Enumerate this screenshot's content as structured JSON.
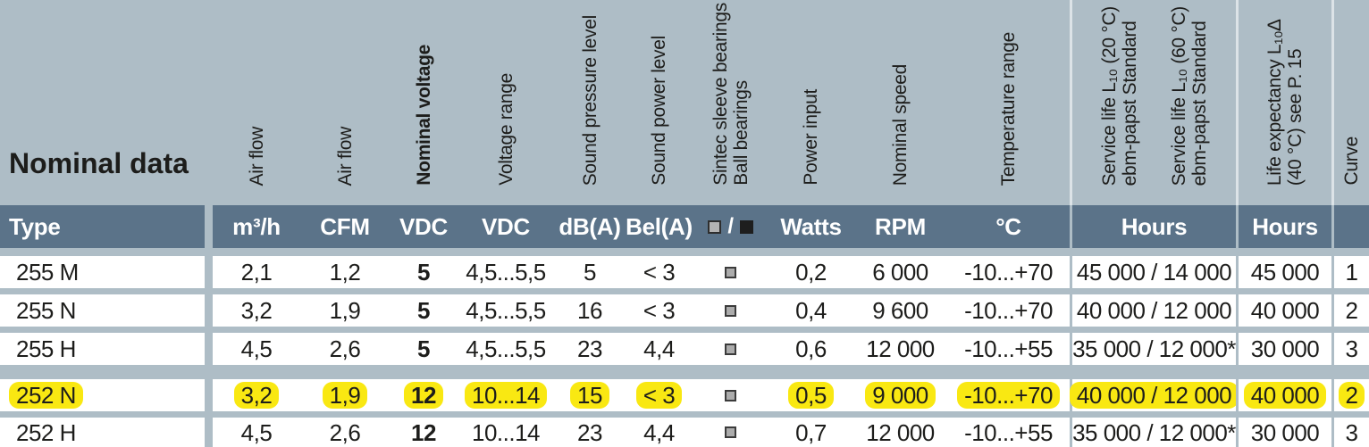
{
  "page": {
    "background_color": "#aebdc6",
    "band_color": "#5b7389",
    "highlight_color": "#f9e812",
    "row_color": "#ffffff",
    "text_color": "#1d1d1b"
  },
  "title": "Nominal data",
  "header": {
    "rotated": {
      "air_flow_m3h": "Air flow",
      "air_flow_cfm": "Air flow",
      "nominal_voltage": "Nominal voltage",
      "voltage_range": "Voltage range",
      "sound_pressure": "Sound pressure level",
      "sound_power": "Sound power level",
      "bearings_line1": "Sintec sleeve bearings",
      "bearings_line2": "Ball bearings",
      "power_input": "Power input",
      "nominal_speed": "Nominal speed",
      "temperature": "Temperature range",
      "service_life_20_line1": "Service life L₁₀ (20 °C)",
      "service_life_20_line2": "ebm-papst Standard",
      "service_life_60_line1": "Service life L₁₀ (60 °C)",
      "service_life_60_line2": "ebm-papst Standard",
      "life_expectancy_line1": "Life expectancy L₁₀∆",
      "life_expectancy_line2": "(40 °C)  see P. 15",
      "curve": "Curve"
    },
    "units": {
      "type": "Type",
      "air_flow_m3h": "m³/h",
      "air_flow_cfm": "CFM",
      "nominal_voltage": "VDC",
      "voltage_range": "VDC",
      "sound_pressure": "dB(A)",
      "sound_power": "Bel(A)",
      "bearing_slash": "/",
      "bearing_sleeve_icon": "light-square",
      "bearing_ball_icon": "dark-square",
      "power_input": "Watts",
      "nominal_speed": "RPM",
      "temperature": "°C",
      "service_life": "Hours",
      "life_expectancy": "Hours"
    }
  },
  "rows": [
    {
      "type": "255 M",
      "air_flow_m3h": "2,1",
      "air_flow_cfm": "1,2",
      "nominal_voltage": "5",
      "voltage_range": "4,5...5,5",
      "sound_pressure": "5",
      "sound_power": "< 3",
      "bearing": "sleeve",
      "power_input": "0,2",
      "nominal_speed": "6 000",
      "temperature": "-10...+70",
      "service_life": "45 000 / 14 000",
      "life_expectancy": "45 000",
      "curve": "1",
      "highlighted": false
    },
    {
      "type": "255 N",
      "air_flow_m3h": "3,2",
      "air_flow_cfm": "1,9",
      "nominal_voltage": "5",
      "voltage_range": "4,5...5,5",
      "sound_pressure": "16",
      "sound_power": "< 3",
      "bearing": "sleeve",
      "power_input": "0,4",
      "nominal_speed": "9 600",
      "temperature": "-10...+70",
      "service_life": "40 000 / 12 000",
      "life_expectancy": "40 000",
      "curve": "2",
      "highlighted": false
    },
    {
      "type": "255 H",
      "air_flow_m3h": "4,5",
      "air_flow_cfm": "2,6",
      "nominal_voltage": "5",
      "voltage_range": "4,5...5,5",
      "sound_pressure": "23",
      "sound_power": "4,4",
      "bearing": "sleeve",
      "power_input": "0,6",
      "nominal_speed": "12 000",
      "temperature": "-10...+55",
      "service_life": "35 000 / 12 000*",
      "life_expectancy": "30 000",
      "curve": "3",
      "highlighted": false
    },
    {
      "type": "252 N",
      "air_flow_m3h": "3,2",
      "air_flow_cfm": "1,9",
      "nominal_voltage": "12",
      "voltage_range": "10...14",
      "sound_pressure": "15",
      "sound_power": "< 3",
      "bearing": "sleeve",
      "power_input": "0,5",
      "nominal_speed": "9 000",
      "temperature": "-10...+70",
      "service_life": "40 000 / 12 000",
      "life_expectancy": "40 000",
      "curve": "2",
      "highlighted": true
    },
    {
      "type": "252 H",
      "air_flow_m3h": "4,5",
      "air_flow_cfm": "2,6",
      "nominal_voltage": "12",
      "voltage_range": "10...14",
      "sound_pressure": "23",
      "sound_power": "4,4",
      "bearing": "sleeve",
      "power_input": "0,7",
      "nominal_speed": "12 000",
      "temperature": "-10...+55",
      "service_life": "35 000 / 12 000*",
      "life_expectancy": "30 000",
      "curve": "3",
      "highlighted": false
    }
  ]
}
